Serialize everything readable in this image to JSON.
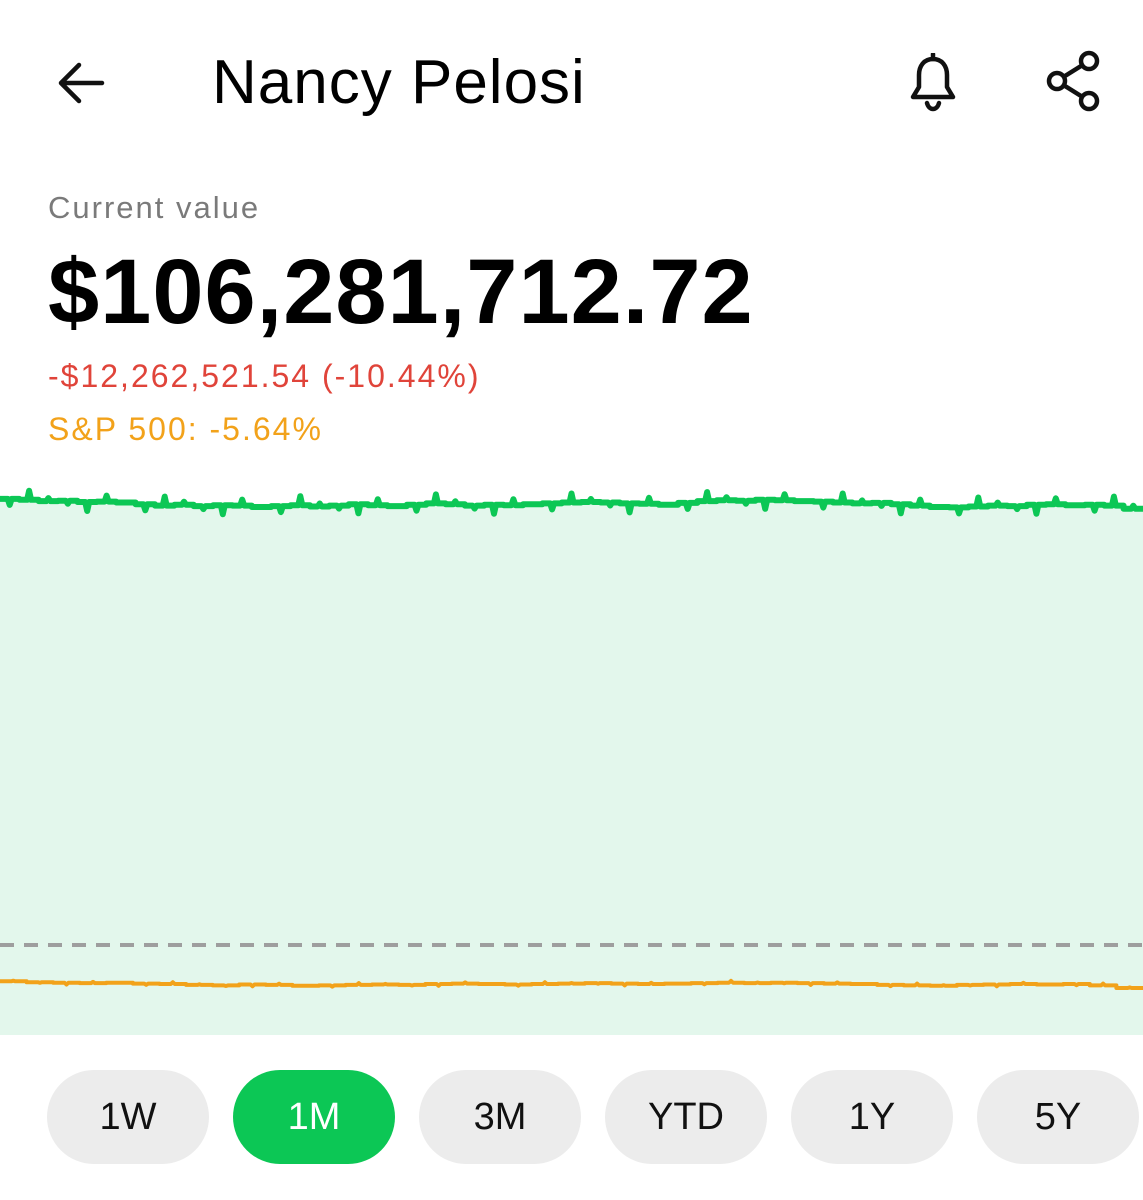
{
  "header": {
    "title": "Nancy Pelosi",
    "back_icon": "arrow-left-icon",
    "bell_icon": "bell-icon",
    "share_icon": "share-icon"
  },
  "portfolio": {
    "label": "Current value",
    "value": "$106,281,712.72",
    "change": "-$12,262,521.54 (-10.44%)",
    "benchmark": "S&P 500: -5.64%"
  },
  "colors": {
    "accent_green": "#0cc755",
    "fill_green": "#e3f7ec",
    "loss_red": "#e0443a",
    "benchmark_orange": "#f2a21a",
    "baseline_gray": "#9e9e9e"
  },
  "chart_data": {
    "type": "line",
    "series": [
      {
        "values": [
          105.8,
          105.6,
          105.3,
          105.4,
          105.1,
          105.2,
          105.0,
          104.6,
          104.3,
          104.5,
          104.2,
          104.4,
          104.3,
          104.0,
          104.2,
          104.4,
          104.1,
          104.3,
          104.6,
          104.4,
          104.2,
          104.5,
          104.8,
          104.6,
          104.3,
          104.5,
          104.4,
          104.6,
          104.8,
          105.0,
          105.1,
          105.0,
          104.8,
          104.7,
          104.5,
          104.9,
          105.3,
          105.5,
          105.4,
          105.6,
          105.5,
          105.3,
          105.2,
          105.0,
          104.8,
          104.9,
          104.6,
          104.3,
          104.0,
          103.9,
          104.1,
          104.3,
          104.2,
          104.5,
          104.6,
          104.4,
          104.5,
          104.3,
          103.6
        ]
      },
      {
        "values": [
          -2.0,
          -2.2,
          -2.3,
          -2.4,
          -2.3,
          -2.5,
          -2.6,
          -2.8,
          -2.9,
          -2.7,
          -2.8,
          -3.0,
          -2.9,
          -2.8,
          -2.7,
          -2.8,
          -2.6,
          -2.5,
          -2.6,
          -2.7,
          -2.6,
          -2.5,
          -2.4,
          -2.5,
          -2.6,
          -2.5,
          -2.4,
          -2.3,
          -2.4,
          -2.3,
          -2.4,
          -2.5,
          -2.6,
          -2.8,
          -2.9,
          -3.0,
          -2.8,
          -2.7,
          -2.6,
          -2.7,
          -2.6,
          -2.9,
          -3.5
        ]
      }
    ]
  },
  "ranges": [
    {
      "label": "1W",
      "active": false
    },
    {
      "label": "1M",
      "active": true
    },
    {
      "label": "3M",
      "active": false
    },
    {
      "label": "YTD",
      "active": false
    },
    {
      "label": "1Y",
      "active": false
    },
    {
      "label": "5Y",
      "active": false
    }
  ]
}
